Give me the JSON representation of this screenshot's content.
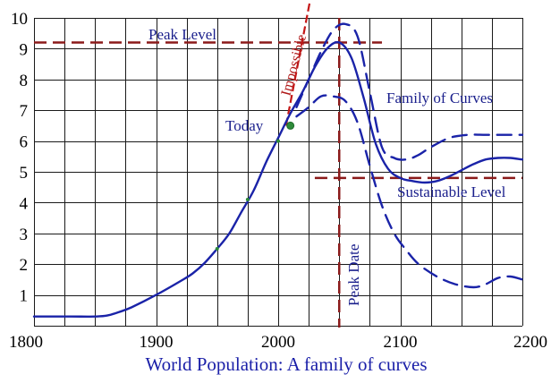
{
  "chart_data": {
    "type": "line",
    "title": "World Population:  A family of curves",
    "xlim": [
      1800,
      2200
    ],
    "ylim": [
      0,
      10
    ],
    "x_ticks": [
      1800,
      1900,
      2000,
      2100,
      2200
    ],
    "y_ticks": [
      1,
      2,
      3,
      4,
      5,
      6,
      7,
      8,
      9,
      10
    ],
    "grid": true,
    "colors": {
      "curve": "#1a23a8",
      "reference": "#8b1a1a",
      "impossible": "#c41616",
      "today_marker": "#2e8b3a"
    },
    "series": [
      {
        "style": "solid",
        "x": [
          1800,
          1830,
          1850,
          1860,
          1870,
          1880,
          1900,
          1920,
          1930,
          1940,
          1950,
          1960,
          1970,
          1980,
          1990,
          2000,
          2010,
          2020,
          2030,
          2040,
          2050,
          2060,
          2070,
          2080,
          2090,
          2100,
          2110,
          2120,
          2130,
          2140,
          2150,
          2160,
          2170,
          2180,
          2190,
          2200
        ],
        "y": [
          0.3,
          0.3,
          0.3,
          0.33,
          0.45,
          0.6,
          1.0,
          1.45,
          1.7,
          2.05,
          2.5,
          3.0,
          3.7,
          4.4,
          5.3,
          6.1,
          6.9,
          7.6,
          8.4,
          9.0,
          9.2,
          8.7,
          7.4,
          5.9,
          5.1,
          4.8,
          4.7,
          4.65,
          4.7,
          4.85,
          5.05,
          5.25,
          5.4,
          5.45,
          5.45,
          5.4
        ]
      },
      {
        "style": "dashed",
        "x": [
          2015,
          2025,
          2035,
          2045,
          2055,
          2065,
          2075,
          2085,
          2095,
          2105,
          2115,
          2125,
          2140,
          2155,
          2170,
          2185,
          2200
        ],
        "y": [
          7.1,
          8.0,
          8.9,
          9.6,
          9.8,
          9.4,
          7.6,
          5.8,
          5.45,
          5.4,
          5.55,
          5.8,
          6.1,
          6.2,
          6.2,
          6.2,
          6.2
        ]
      },
      {
        "style": "dashed",
        "x": [
          2015,
          2025,
          2035,
          2045,
          2055,
          2065,
          2075,
          2085,
          2095,
          2105,
          2115,
          2130,
          2145,
          2160,
          2170,
          2180,
          2190,
          2200
        ],
        "y": [
          6.8,
          7.1,
          7.45,
          7.45,
          7.3,
          6.6,
          5.2,
          3.9,
          3.0,
          2.45,
          2.0,
          1.6,
          1.35,
          1.25,
          1.35,
          1.55,
          1.6,
          1.5
        ]
      }
    ],
    "reference_lines": [
      {
        "label": "Peak Level",
        "orientation": "horizontal",
        "value": 9.2,
        "from": 1800,
        "to": 2085
      },
      {
        "label": "Sustainable Level",
        "orientation": "horizontal",
        "value": 4.8,
        "from": 2030,
        "to": 2200
      },
      {
        "label": "Peak Date",
        "orientation": "vertical",
        "value": 2050,
        "from": 0,
        "to": 10
      },
      {
        "label": "Impossible",
        "orientation": "vertical",
        "value": 2024,
        "from": 6.5,
        "to": 10
      }
    ],
    "annotations": [
      {
        "text": "Today",
        "x": 2010,
        "y": 6.5
      },
      {
        "text": "Family of Curves"
      }
    ],
    "minor_markers": [
      {
        "x": 1950,
        "y": 2.5
      },
      {
        "x": 1975,
        "y": 4.1
      },
      {
        "x": 2000,
        "y": 6.0
      }
    ]
  }
}
